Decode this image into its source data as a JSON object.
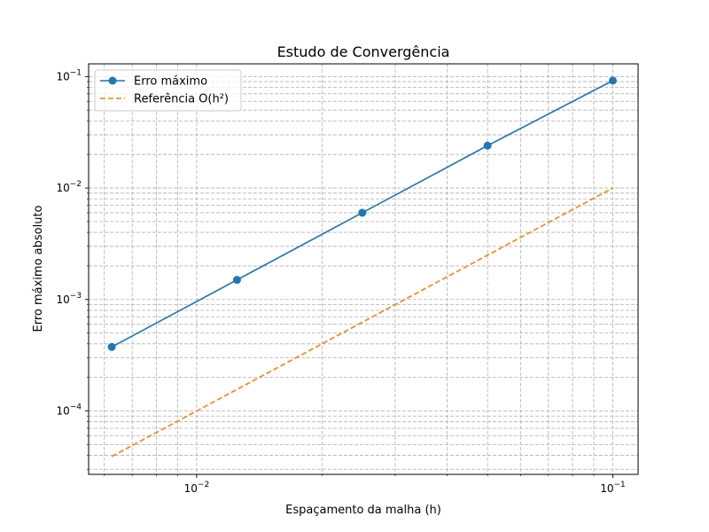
{
  "chart_data": {
    "type": "line",
    "title": "Estudo de Convergência",
    "xlabel": "Espaçamento da malha (h)",
    "ylabel": "Erro máximo absoluto",
    "xscale": "log",
    "yscale": "log",
    "xlim": [
      0.0055,
      0.115
    ],
    "ylim": [
      2.7e-05,
      0.13
    ],
    "grid": true,
    "legend_position": "top-left",
    "x_major_ticks": [
      0.01,
      0.1
    ],
    "x_tick_labels": [
      {
        "base": "10",
        "exp": "−2"
      },
      {
        "base": "10",
        "exp": "−1"
      }
    ],
    "y_major_ticks": [
      0.0001,
      0.001,
      0.01,
      0.1
    ],
    "y_tick_labels": [
      {
        "base": "10",
        "exp": "−4"
      },
      {
        "base": "10",
        "exp": "−3"
      },
      {
        "base": "10",
        "exp": "−2"
      },
      {
        "base": "10",
        "exp": "−1"
      }
    ],
    "series": [
      {
        "name": "Erro máximo",
        "color": "#1f77b4",
        "style": "solid",
        "marker": "circle",
        "x": [
          0.00625,
          0.0125,
          0.025,
          0.05,
          0.1
        ],
        "y": [
          0.000375,
          0.0015,
          0.006,
          0.024,
          0.092
        ]
      },
      {
        "name": "Referência O(h²)",
        "color": "#ff7f0e",
        "style": "dashed",
        "marker": "none",
        "x": [
          0.00625,
          0.0125,
          0.025,
          0.05,
          0.1
        ],
        "y": [
          3.90625e-05,
          0.00015625,
          0.000625,
          0.0025,
          0.01
        ]
      }
    ]
  }
}
